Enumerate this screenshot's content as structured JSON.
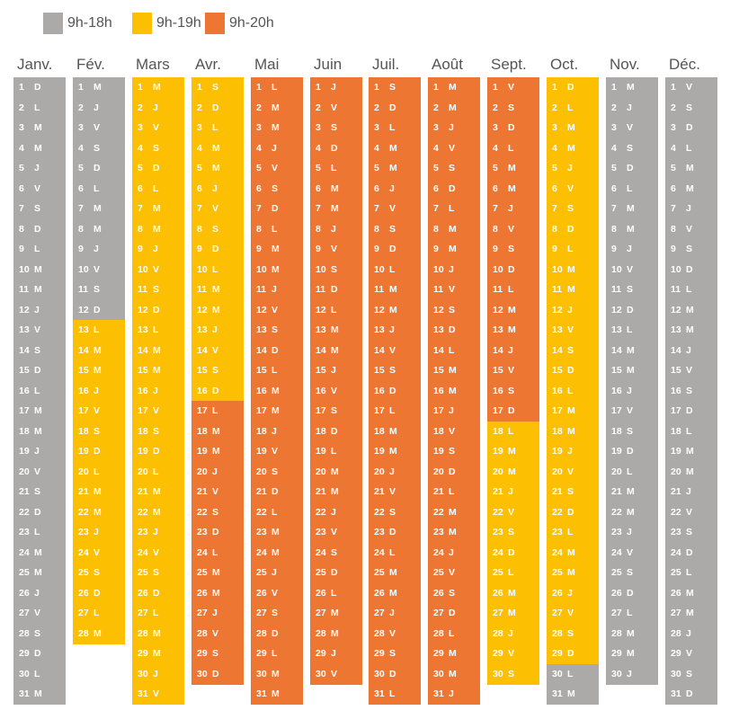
{
  "legend": [
    {
      "label": "9h-18h",
      "color": "#aca9a9"
    },
    {
      "label": "9h-19h",
      "color": "#fdbf01"
    },
    {
      "label": "9h-20h",
      "color": "#ee7633"
    }
  ],
  "chart_data": {
    "type": "heatmap",
    "description_of_values": "opening hours per calendar day",
    "months": [
      {
        "name": "Janv.",
        "days": 31,
        "first_dow": 6,
        "segments": [
          {
            "start": 1,
            "end": 31,
            "hours": "9h-18h"
          }
        ]
      },
      {
        "name": "Fév.",
        "days": 28,
        "first_dow": 2,
        "segments": [
          {
            "start": 1,
            "end": 12,
            "hours": "9h-18h"
          },
          {
            "start": 13,
            "end": 28,
            "hours": "9h-19h"
          }
        ]
      },
      {
        "name": "Mars",
        "days": 31,
        "first_dow": 2,
        "segments": [
          {
            "start": 1,
            "end": 31,
            "hours": "9h-19h"
          }
        ]
      },
      {
        "name": "Avr.",
        "days": 30,
        "first_dow": 5,
        "segments": [
          {
            "start": 1,
            "end": 16,
            "hours": "9h-19h"
          },
          {
            "start": 17,
            "end": 30,
            "hours": "9h-20h"
          }
        ]
      },
      {
        "name": "Mai",
        "days": 31,
        "first_dow": 0,
        "segments": [
          {
            "start": 1,
            "end": 31,
            "hours": "9h-20h"
          }
        ]
      },
      {
        "name": "Juin",
        "days": 30,
        "first_dow": 3,
        "segments": [
          {
            "start": 1,
            "end": 30,
            "hours": "9h-20h"
          }
        ]
      },
      {
        "name": "Juil.",
        "days": 31,
        "first_dow": 5,
        "segments": [
          {
            "start": 1,
            "end": 31,
            "hours": "9h-20h"
          }
        ]
      },
      {
        "name": "Août",
        "days": 31,
        "first_dow": 1,
        "segments": [
          {
            "start": 1,
            "end": 31,
            "hours": "9h-20h"
          }
        ]
      },
      {
        "name": "Sept.",
        "days": 30,
        "first_dow": 4,
        "segments": [
          {
            "start": 1,
            "end": 17,
            "hours": "9h-20h"
          },
          {
            "start": 18,
            "end": 30,
            "hours": "9h-19h"
          }
        ]
      },
      {
        "name": "Oct.",
        "days": 31,
        "first_dow": 6,
        "segments": [
          {
            "start": 1,
            "end": 29,
            "hours": "9h-19h"
          },
          {
            "start": 30,
            "end": 31,
            "hours": "9h-18h"
          }
        ]
      },
      {
        "name": "Nov.",
        "days": 30,
        "first_dow": 2,
        "segments": [
          {
            "start": 1,
            "end": 30,
            "hours": "9h-18h"
          }
        ]
      },
      {
        "name": "Déc.",
        "days": 31,
        "first_dow": 4,
        "segments": [
          {
            "start": 1,
            "end": 31,
            "hours": "9h-18h"
          }
        ]
      }
    ],
    "weekday_letters": [
      "L",
      "M",
      "M",
      "J",
      "V",
      "S",
      "D"
    ]
  }
}
